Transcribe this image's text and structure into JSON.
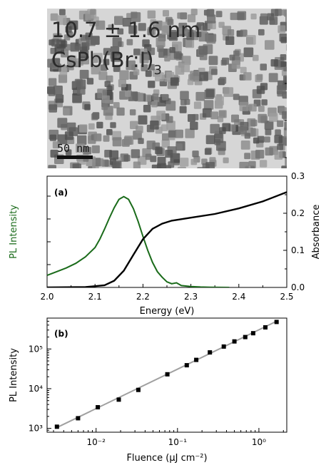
{
  "tem": {
    "size_label": "10.7 ± 1.6 nm",
    "composition_main": "CsPb(Br:I)",
    "composition_sub": "3",
    "scale_bar_label": "50 nm"
  },
  "colors": {
    "pl": "#1a6b1a",
    "absorbance": "#000000",
    "fit": "#a0a0a0",
    "points": "#000000"
  },
  "chart_data": [
    {
      "type": "line",
      "panel_label": "(a)",
      "xlabel": "Energy (eV)",
      "ylabel_left": "PL Intensity",
      "ylabel_right": "Absorbance",
      "xlim": [
        2.0,
        2.5
      ],
      "ylim_right": [
        0.0,
        0.3
      ],
      "xticks": [
        "2.0",
        "2.1",
        "2.2",
        "2.3",
        "2.4",
        "2.5"
      ],
      "yticks_right": [
        "0.0",
        "0.1",
        "0.2",
        "0.3"
      ],
      "series": [
        {
          "name": "PL Intensity",
          "axis": "left",
          "x": [
            2.0,
            2.02,
            2.04,
            2.06,
            2.08,
            2.1,
            2.11,
            2.12,
            2.13,
            2.14,
            2.15,
            2.16,
            2.17,
            2.18,
            2.19,
            2.2,
            2.21,
            2.22,
            2.23,
            2.24,
            2.25,
            2.26,
            2.27,
            2.28,
            2.3,
            2.32,
            2.34,
            2.36,
            2.38
          ],
          "y": [
            0.13,
            0.17,
            0.21,
            0.26,
            0.33,
            0.43,
            0.52,
            0.63,
            0.75,
            0.86,
            0.95,
            0.98,
            0.95,
            0.85,
            0.71,
            0.55,
            0.4,
            0.27,
            0.17,
            0.11,
            0.06,
            0.04,
            0.05,
            0.02,
            0.01,
            0.005,
            0.002,
            0.001,
            0.0
          ]
        },
        {
          "name": "Absorbance",
          "axis": "right",
          "x": [
            2.0,
            2.08,
            2.12,
            2.14,
            2.16,
            2.18,
            2.2,
            2.22,
            2.24,
            2.26,
            2.28,
            2.3,
            2.35,
            2.4,
            2.45,
            2.5
          ],
          "y": [
            0.0,
            0.001,
            0.006,
            0.018,
            0.045,
            0.088,
            0.13,
            0.158,
            0.172,
            0.18,
            0.184,
            0.188,
            0.198,
            0.213,
            0.232,
            0.257
          ]
        }
      ]
    },
    {
      "type": "scatter",
      "panel_label": "(b)",
      "xlabel": "Fluence (μJ cm⁻²)",
      "ylabel": "PL Intensity",
      "xscale": "log",
      "yscale": "log",
      "xlim": [
        0.0025,
        2.2
      ],
      "ylim": [
        800,
        600000
      ],
      "xticks": [
        "10⁻²",
        "10⁻¹",
        "10⁰"
      ],
      "yticks": [
        "10³",
        "10⁴",
        "10⁵"
      ],
      "points": {
        "x": [
          0.0033,
          0.006,
          0.0105,
          0.019,
          0.033,
          0.075,
          0.13,
          0.17,
          0.25,
          0.37,
          0.5,
          0.68,
          0.85,
          1.2,
          1.65
        ],
        "y": [
          1100,
          1800,
          3400,
          5300,
          9300,
          23000,
          39000,
          53000,
          82000,
          115000,
          155000,
          200000,
          250000,
          350000,
          480000
        ]
      },
      "fit": {
        "x": [
          0.0033,
          1.65
        ],
        "y": [
          1050,
          500000
        ]
      }
    }
  ]
}
